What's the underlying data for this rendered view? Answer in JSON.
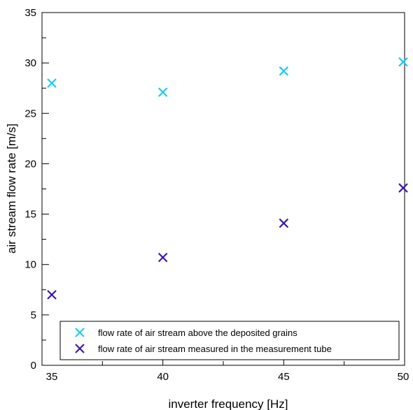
{
  "chart_data": {
    "type": "scatter",
    "title": "",
    "xlabel": "inverter frequency [Hz]",
    "ylabel": "air stream flow rate [m/s]",
    "xlim": [
      35,
      50
    ],
    "ylim": [
      0,
      35
    ],
    "x_ticks": [
      35,
      40,
      45,
      50
    ],
    "y_ticks": [
      0,
      5,
      10,
      15,
      20,
      25,
      30,
      35
    ],
    "grid": false,
    "legend_position": "bottom",
    "marker": "x",
    "series": [
      {
        "name": "flow rate of air stream above the deposited grains",
        "color": "#1ecbf0",
        "x": [
          35,
          40,
          45,
          50
        ],
        "y": [
          28.0,
          27.1,
          29.2,
          30.1
        ]
      },
      {
        "name": "flow rate of air stream measured in the measurement tube",
        "color": "#3b17b5",
        "x": [
          35,
          40,
          45,
          50
        ],
        "y": [
          7.0,
          10.7,
          14.1,
          17.6
        ]
      }
    ]
  }
}
